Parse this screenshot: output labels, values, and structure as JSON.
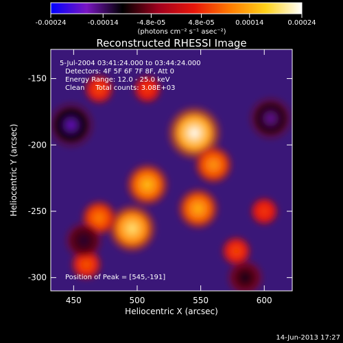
{
  "chart_data": {
    "type": "heatmap",
    "title": "Reconstructed RHESSI Image",
    "xlabel": "Heliocentric X (arcsec)",
    "ylabel": "Heliocentric Y (arcsec)",
    "xlim": [
      432,
      622
    ],
    "ylim": [
      -310,
      -128
    ],
    "xticks": [
      450,
      500,
      550,
      600
    ],
    "yticks": [
      -150,
      -200,
      -250,
      -300
    ],
    "colorbar": {
      "range": [
        -0.00024,
        0.00024
      ],
      "ticks": [
        "-0.00024",
        "-0.00014",
        "-4.8e-05",
        "4.8e-05",
        "0.00014",
        "0.00024"
      ],
      "tick_values": [
        -0.00024,
        -0.00014,
        -4.8e-05,
        4.8e-05,
        0.00014,
        0.00024
      ],
      "unit_label": "(photons cm⁻² s⁻¹ asec⁻²)",
      "colormap": [
        "#0000ff",
        "#7a16c2",
        "#000000",
        "#a0001e",
        "#e8160a",
        "#ff7b00",
        "#ffd21a",
        "#ffffff"
      ]
    },
    "annotations": {
      "time": "5-Jul-2004 03:41:24.000 to 03:44:24.000",
      "detectors": "Detectors: 4F 5F 6F 7F 8F, Att 0",
      "energy": "Energy Range: 12.0 - 25.0 keV",
      "clean": "Clean     Total counts: 3.08E+03",
      "peak": "Position of Peak = [545,-191]"
    },
    "sources": [
      {
        "x": 545,
        "y": -191,
        "value": 0.00024
      },
      {
        "x": 496,
        "y": -263,
        "value": 0.0002
      },
      {
        "x": 548,
        "y": -248,
        "value": 0.00015
      },
      {
        "x": 508,
        "y": -230,
        "value": 0.00016
      },
      {
        "x": 470,
        "y": -255,
        "value": 0.00011
      },
      {
        "x": 560,
        "y": -215,
        "value": 0.00013
      },
      {
        "x": 460,
        "y": -290,
        "value": 8e-05
      },
      {
        "x": 470,
        "y": -158,
        "value": 7e-05
      },
      {
        "x": 508,
        "y": -158,
        "value": 6e-05
      },
      {
        "x": 578,
        "y": -280,
        "value": 7e-05
      },
      {
        "x": 600,
        "y": -250,
        "value": 6e-05
      },
      {
        "x": 448,
        "y": -185,
        "value": -0.00018
      },
      {
        "x": 605,
        "y": -180,
        "value": -0.00016
      },
      {
        "x": 458,
        "y": -272,
        "value": -0.00012
      },
      {
        "x": 585,
        "y": -300,
        "value": -0.00011
      }
    ]
  },
  "footer": {
    "timestamp": "14-Jun-2013 17:27"
  }
}
